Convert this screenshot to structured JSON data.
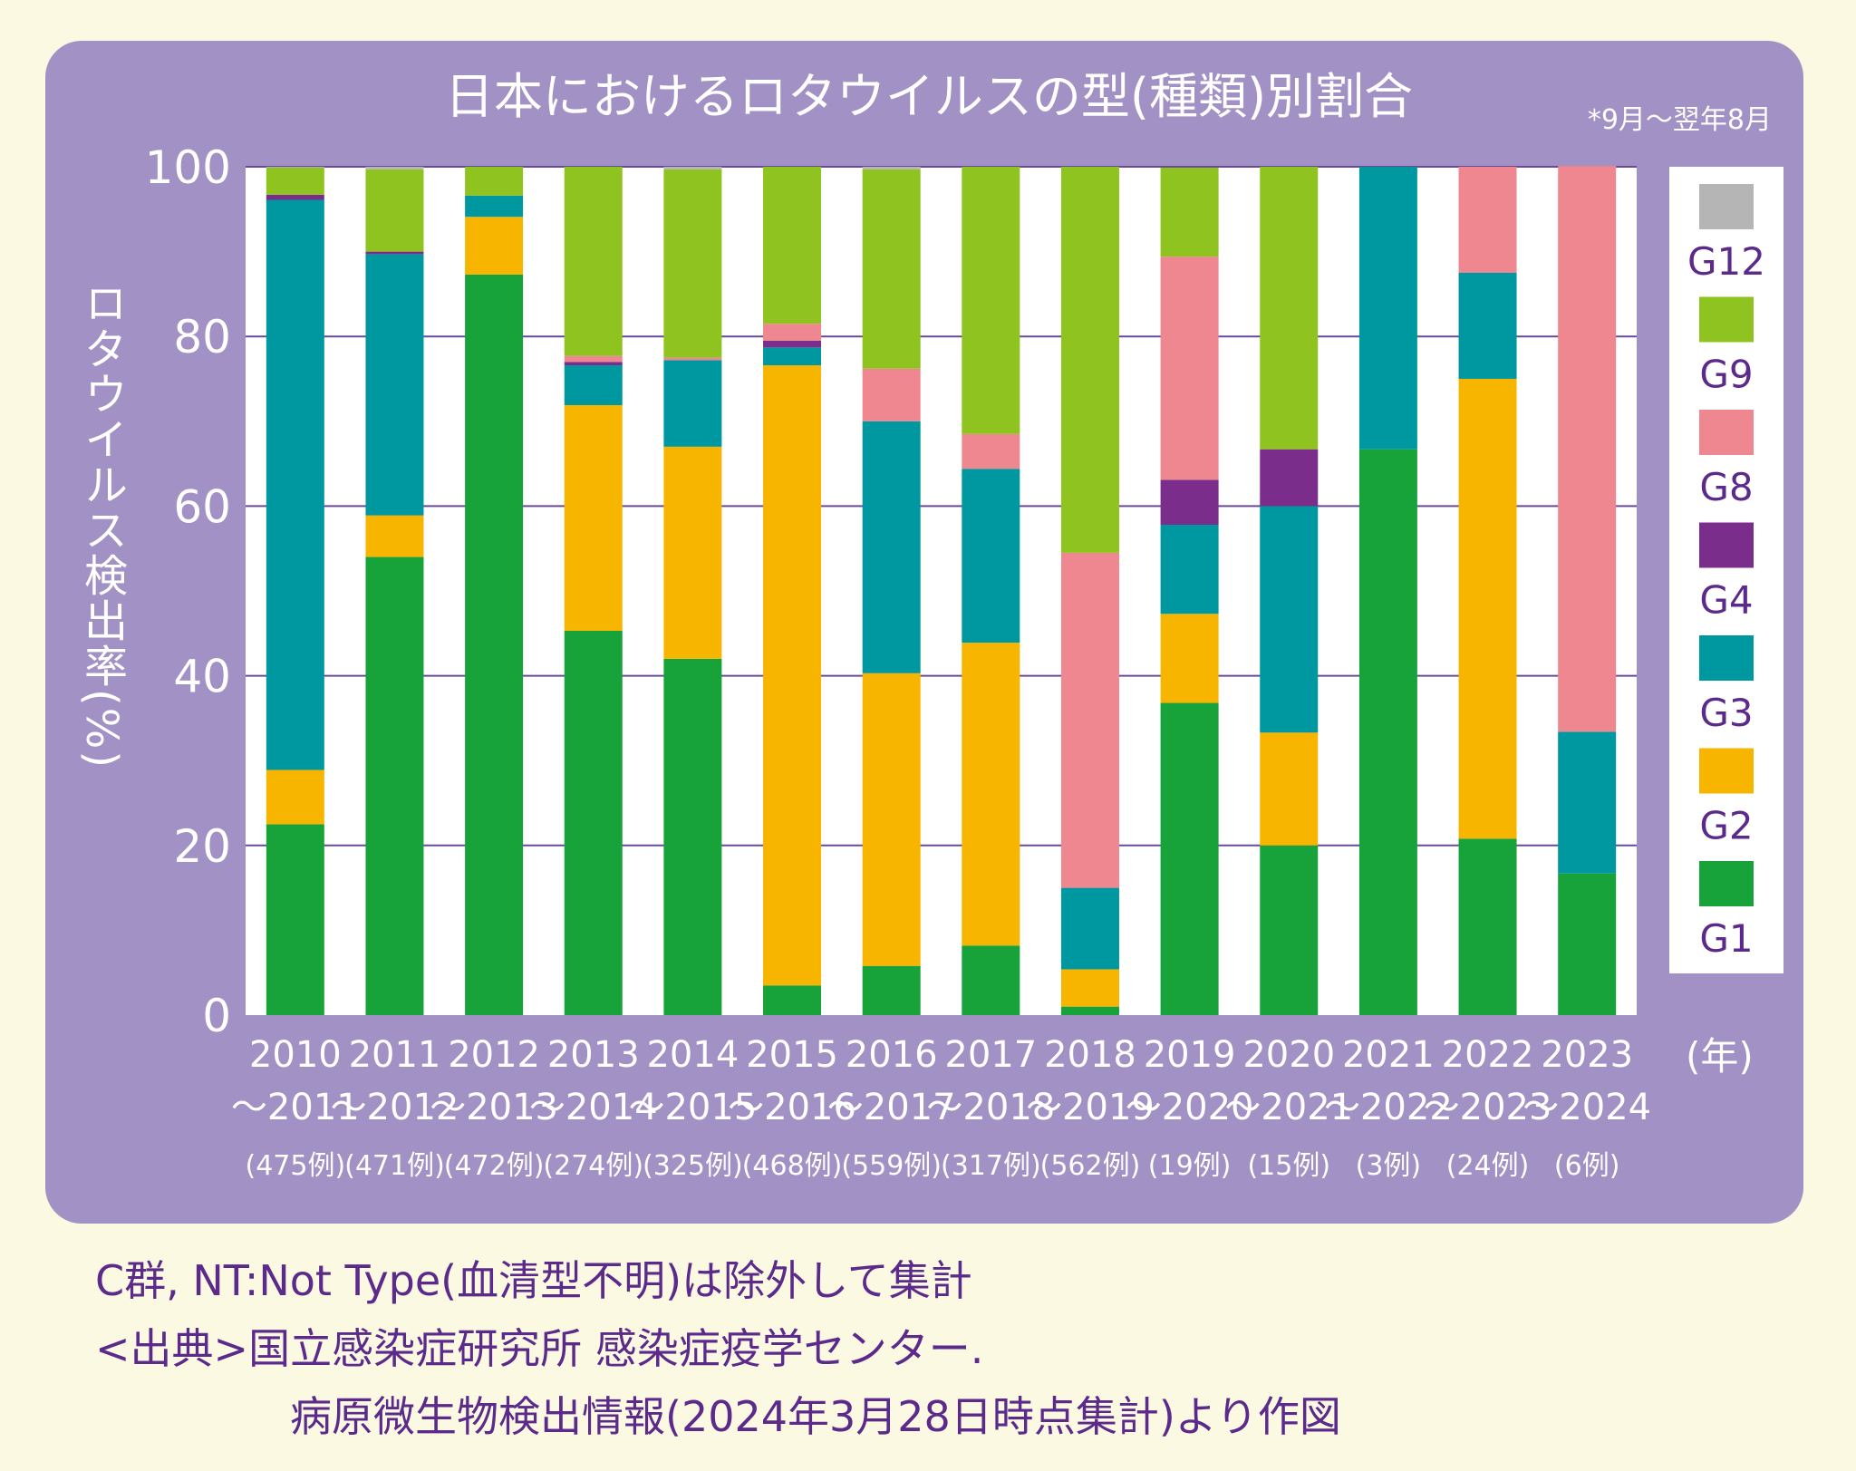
{
  "chart_data": {
    "type": "bar",
    "stacked": true,
    "title": "日本におけるロタウイルスの型(種類)別割合",
    "period_note": "*9月〜翌年8月",
    "ylabel": "ロタウイルス検出率(%)",
    "xlabel": "(年)",
    "ylim": [
      0,
      100
    ],
    "yticks": [
      0,
      20,
      40,
      60,
      80,
      100
    ],
    "grid": true,
    "legend_position": "right",
    "categories": [
      {
        "year": "2010",
        "range": "〜2011",
        "count": "(475例)"
      },
      {
        "year": "2011",
        "range": "〜2012",
        "count": "(471例)"
      },
      {
        "year": "2012",
        "range": "〜2013",
        "count": "(472例)"
      },
      {
        "year": "2013",
        "range": "〜2014",
        "count": "(274例)"
      },
      {
        "year": "2014",
        "range": "〜2015",
        "count": "(325例)"
      },
      {
        "year": "2015",
        "range": "〜2016",
        "count": "(468例)"
      },
      {
        "year": "2016",
        "range": "〜2017",
        "count": "(559例)"
      },
      {
        "year": "2017",
        "range": "〜2018",
        "count": "(317例)"
      },
      {
        "year": "2018",
        "range": "〜2019",
        "count": "(562例)"
      },
      {
        "year": "2019",
        "range": "〜2020",
        "count": "(19例)"
      },
      {
        "year": "2020",
        "range": "〜2021",
        "count": "(15例)"
      },
      {
        "year": "2021",
        "range": "〜2022",
        "count": "(3例)"
      },
      {
        "year": "2022",
        "range": "〜2023",
        "count": "(24例)"
      },
      {
        "year": "2023",
        "range": "〜2024",
        "count": "(6例)"
      }
    ],
    "series": [
      {
        "name": "G1",
        "color": "#18a33a",
        "values": [
          22.5,
          54.0,
          87.3,
          45.3,
          42.0,
          3.5,
          5.8,
          8.2,
          1.0,
          36.8,
          20.0,
          66.7,
          20.8,
          16.7
        ]
      },
      {
        "name": "G2",
        "color": "#f8b500",
        "values": [
          6.4,
          4.9,
          6.8,
          26.6,
          25.0,
          73.1,
          34.5,
          35.7,
          4.4,
          10.5,
          13.3,
          0,
          54.2,
          0
        ]
      },
      {
        "name": "G3",
        "color": "#0098a0",
        "values": [
          67.2,
          30.8,
          2.5,
          4.7,
          10.2,
          2.1,
          29.7,
          20.5,
          9.6,
          10.5,
          26.7,
          33.3,
          12.5,
          16.7
        ]
      },
      {
        "name": "G4",
        "color": "#7b2d8b",
        "values": [
          0.6,
          0.3,
          0,
          0.4,
          0,
          0.8,
          0,
          0,
          0,
          5.3,
          6.7,
          0,
          0,
          0
        ]
      },
      {
        "name": "G8",
        "color": "#ef8791",
        "values": [
          0,
          0,
          0,
          0.7,
          0.3,
          2.0,
          6.2,
          4.1,
          39.5,
          26.3,
          0,
          0,
          12.5,
          66.7
        ]
      },
      {
        "name": "G9",
        "color": "#8fc31f",
        "values": [
          3.2,
          9.7,
          3.4,
          22.3,
          22.2,
          18.5,
          23.5,
          31.5,
          45.5,
          10.5,
          33.3,
          0,
          0,
          0
        ]
      },
      {
        "name": "G12",
        "color": "#b5b5b5",
        "values": [
          0.1,
          0.3,
          0,
          0,
          0.3,
          0,
          0.3,
          0,
          0,
          0,
          0,
          0,
          0,
          0
        ]
      }
    ]
  },
  "footnotes": {
    "note": "C群, NT:Not Type(血清型不明)は除外して集計",
    "source_line1": "<出典>国立感染症研究所 感染症疫学センター.",
    "source_line2": "病原微生物検出情報(2024年3月28日時点集計)より作図"
  }
}
